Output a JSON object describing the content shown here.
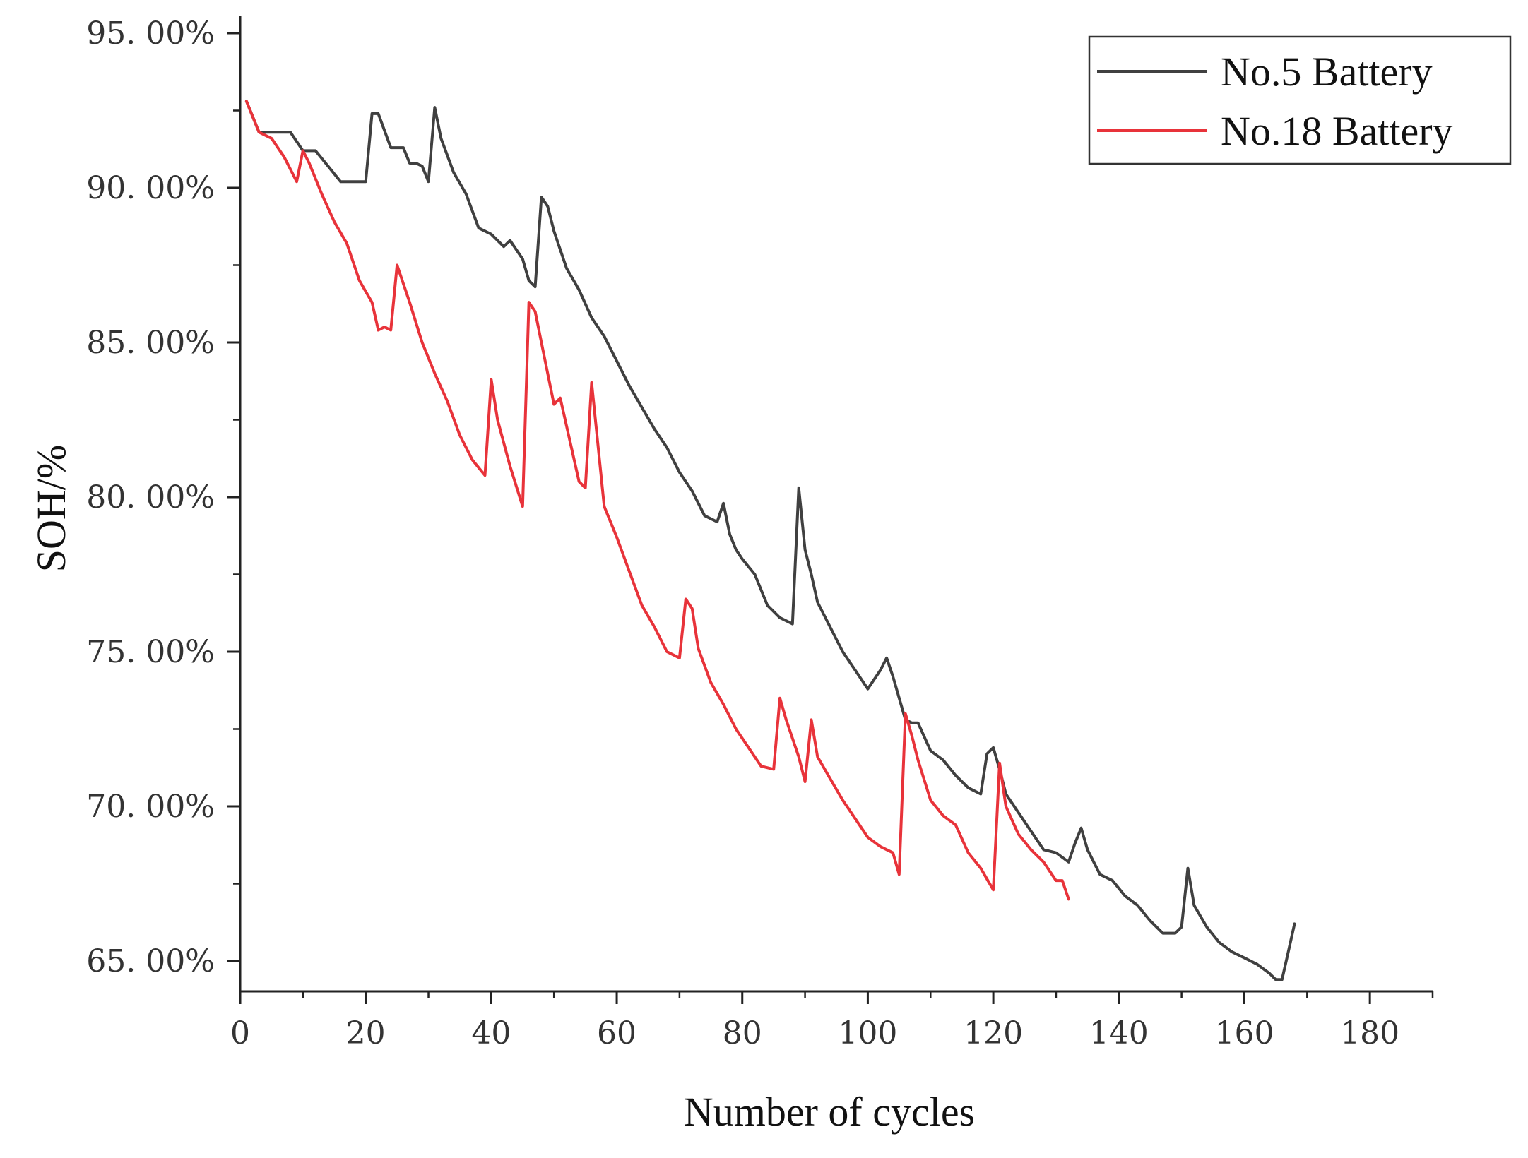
{
  "chart_data": {
    "type": "line",
    "title": "",
    "xlabel": "Number of cycles",
    "ylabel": "SOH/%",
    "xlim": [
      0,
      190
    ],
    "ylim": [
      64.0,
      96.0
    ],
    "x_ticks": [
      0,
      20,
      40,
      60,
      80,
      100,
      120,
      140,
      160,
      180
    ],
    "x_tick_labels": [
      "0",
      "20",
      "40",
      "60",
      "80",
      "100",
      "120",
      "140",
      "160",
      "180"
    ],
    "y_ticks": [
      65,
      70,
      75,
      80,
      85,
      90,
      95
    ],
    "y_tick_labels": [
      "65. 00%",
      "70. 00%",
      "75. 00%",
      "80. 00%",
      "85. 00%",
      "90. 00%",
      "95. 00%"
    ],
    "grid": false,
    "legend_position": "top-right",
    "series": [
      {
        "name": "No.5 Battery",
        "color": "#404040",
        "x": [
          1,
          3,
          5,
          8,
          10,
          12,
          14,
          16,
          18,
          20,
          21,
          22,
          24,
          26,
          27,
          28,
          29,
          30,
          31,
          32,
          34,
          36,
          38,
          40,
          42,
          43,
          45,
          46,
          47,
          48,
          49,
          50,
          52,
          54,
          56,
          58,
          60,
          62,
          64,
          66,
          68,
          70,
          72,
          74,
          76,
          77,
          78,
          79,
          80,
          82,
          84,
          86,
          88,
          89,
          90,
          91,
          92,
          94,
          96,
          98,
          100,
          102,
          103,
          104,
          106,
          107,
          108,
          110,
          112,
          114,
          116,
          118,
          119,
          120,
          121,
          122,
          124,
          126,
          128,
          130,
          132,
          133,
          134,
          135,
          137,
          139,
          141,
          143,
          145,
          147,
          149,
          150,
          151,
          152,
          154,
          156,
          158,
          160,
          162,
          164,
          165,
          166,
          167,
          168
        ],
        "y": [
          92.8,
          91.8,
          91.8,
          91.8,
          91.2,
          91.2,
          90.7,
          90.2,
          90.2,
          90.2,
          92.4,
          92.4,
          91.3,
          91.3,
          90.8,
          90.8,
          90.7,
          90.2,
          92.6,
          91.6,
          90.5,
          89.8,
          88.7,
          88.5,
          88.1,
          88.3,
          87.7,
          87.0,
          86.8,
          89.7,
          89.4,
          88.6,
          87.4,
          86.7,
          85.8,
          85.2,
          84.4,
          83.6,
          82.9,
          82.2,
          81.6,
          80.8,
          80.2,
          79.4,
          79.2,
          79.8,
          78.8,
          78.3,
          78.0,
          77.5,
          76.5,
          76.1,
          75.9,
          80.3,
          78.3,
          77.5,
          76.6,
          75.8,
          75.0,
          74.4,
          73.8,
          74.4,
          74.8,
          74.2,
          72.8,
          72.7,
          72.7,
          71.8,
          71.5,
          71.0,
          70.6,
          70.4,
          71.7,
          71.9,
          71.2,
          70.4,
          69.8,
          69.2,
          68.6,
          68.5,
          68.2,
          68.8,
          69.3,
          68.6,
          67.8,
          67.6,
          67.1,
          66.8,
          66.3,
          65.9,
          65.9,
          66.1,
          68.0,
          66.8,
          66.1,
          65.6,
          65.3,
          65.1,
          64.9,
          64.6,
          64.4,
          64.4,
          65.3,
          66.2
        ]
      },
      {
        "name": "No.18 Battery",
        "color": "#e8333a",
        "x": [
          1,
          3,
          5,
          7,
          9,
          10,
          11,
          13,
          15,
          17,
          19,
          21,
          22,
          23,
          24,
          25,
          27,
          29,
          31,
          33,
          35,
          37,
          39,
          40,
          41,
          43,
          45,
          46,
          47,
          48,
          50,
          51,
          52,
          54,
          55,
          56,
          58,
          60,
          62,
          64,
          66,
          68,
          70,
          71,
          72,
          73,
          75,
          77,
          79,
          81,
          83,
          85,
          86,
          87,
          89,
          90,
          91,
          92,
          94,
          96,
          98,
          100,
          102,
          104,
          105,
          106,
          107,
          108,
          110,
          112,
          114,
          116,
          118,
          120,
          121,
          122,
          124,
          126,
          128,
          130,
          131,
          132
        ],
        "y": [
          92.8,
          91.8,
          91.6,
          91.0,
          90.2,
          91.2,
          90.8,
          89.8,
          88.9,
          88.2,
          87.0,
          86.3,
          85.4,
          85.5,
          85.4,
          87.5,
          86.3,
          85.0,
          84.0,
          83.1,
          82.0,
          81.2,
          80.7,
          83.8,
          82.5,
          81.0,
          79.7,
          86.3,
          86.0,
          85.0,
          83.0,
          83.2,
          82.3,
          80.5,
          80.3,
          83.7,
          79.7,
          78.7,
          77.6,
          76.5,
          75.8,
          75.0,
          74.8,
          76.7,
          76.4,
          75.1,
          74.0,
          73.3,
          72.5,
          71.9,
          71.3,
          71.2,
          73.5,
          72.8,
          71.6,
          70.8,
          72.8,
          71.6,
          70.9,
          70.2,
          69.6,
          69.0,
          68.7,
          68.5,
          67.8,
          73.0,
          72.3,
          71.5,
          70.2,
          69.7,
          69.4,
          68.5,
          68.0,
          67.3,
          71.4,
          70.0,
          69.1,
          68.6,
          68.2,
          67.6,
          67.6,
          67.0
        ]
      }
    ]
  }
}
